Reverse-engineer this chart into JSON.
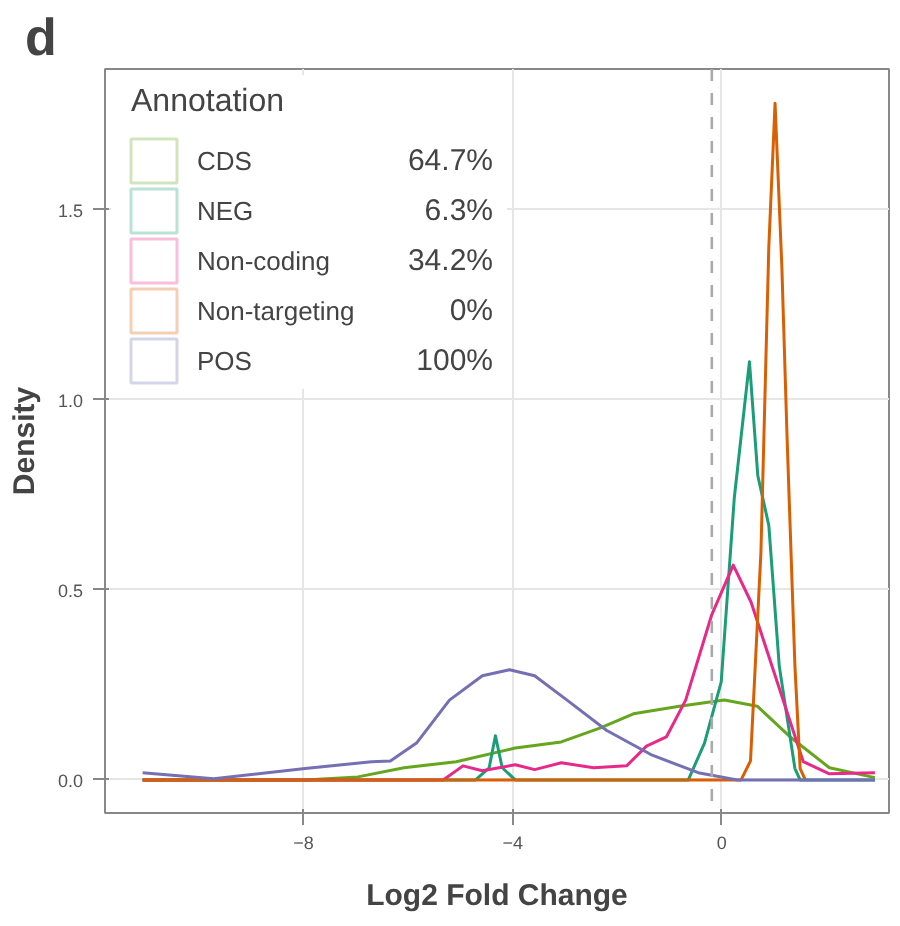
{
  "chart_data": {
    "type": "line",
    "title": "d",
    "xlabel": "Log2 Fold Change",
    "ylabel": "Density",
    "legend_title": "Annotation",
    "legend": "top left",
    "grid": true,
    "marker": "none",
    "line_style": "solid",
    "xlim": [
      -11.8,
      3.2
    ],
    "ylim": [
      -0.087,
      1.87
    ],
    "xticks": [
      -8,
      -4,
      0
    ],
    "yticks": [
      {
        "value": 0,
        "label": "0.0"
      },
      {
        "value": 0.5,
        "label": "0.5"
      },
      {
        "value": 1,
        "label": "1.0"
      },
      {
        "value": 1.5,
        "label": "1.5"
      }
    ],
    "annotations": [
      "64.7%",
      "6.3%",
      "34.2%",
      "0%",
      "100%"
    ],
    "ref_lines": [
      {
        "axis": "x",
        "value": -0.19,
        "color": "#aaaaaa",
        "line_style": "dashed"
      }
    ],
    "series": [
      {
        "name": "CDS",
        "color": "#66a61e",
        "x": [
          -11.08,
          -7.97,
          -6.96,
          -6.08,
          -5.08,
          -3.95,
          -3.07,
          -2.32,
          -1.69,
          -0.81,
          0.05,
          0.68,
          1.31,
          2.06,
          2.93
        ],
        "values": [
          0,
          0,
          0.008,
          0.032,
          0.048,
          0.084,
          0.1,
          0.137,
          0.174,
          0.194,
          0.21,
          0.194,
          0.113,
          0.032,
          0.006
        ]
      },
      {
        "name": "NEG",
        "color": "#1b9e77",
        "x": [
          -11.08,
          -4.71,
          -4.45,
          -4.33,
          -4.2,
          -3.95,
          -0.64,
          -0.33,
          -0.01,
          0.24,
          0.53,
          0.69,
          0.9,
          1.1,
          1.4,
          1.5,
          2.93
        ],
        "values": [
          0,
          0,
          0.032,
          0.116,
          0.032,
          0,
          0,
          0.097,
          0.258,
          0.742,
          1.1,
          0.8,
          0.67,
          0.3,
          0.03,
          0,
          0
        ]
      },
      {
        "name": "Non-coding",
        "color": "#e7298a",
        "x": [
          -11.08,
          -5.33,
          -4.95,
          -4.58,
          -3.95,
          -3.58,
          -3.07,
          -2.45,
          -1.82,
          -1.44,
          -1.06,
          -0.69,
          -0.19,
          0.22,
          0.56,
          1.06,
          1.56,
          2.06,
          2.93
        ],
        "values": [
          0,
          0,
          0.037,
          0.024,
          0.04,
          0.027,
          0.045,
          0.032,
          0.037,
          0.089,
          0.113,
          0.21,
          0.435,
          0.565,
          0.468,
          0.258,
          0.048,
          0.016,
          0.019
        ]
      },
      {
        "name": "Non-targeting",
        "color": "#d95f02",
        "x": [
          -11.08,
          0.37,
          0.55,
          0.75,
          0.9,
          1.02,
          1.15,
          1.25,
          1.4,
          1.5,
          1.6
        ],
        "values": [
          0,
          0,
          0.05,
          0.6,
          1.4,
          1.78,
          1.35,
          0.9,
          0.3,
          0.03,
          0
        ]
      },
      {
        "name": "POS",
        "color": "#7570b3",
        "x": [
          -11.08,
          -9.72,
          -7.97,
          -6.7,
          -6.34,
          -5.84,
          -5.21,
          -4.58,
          -4.06,
          -3.58,
          -2.96,
          -2.2,
          -1.33,
          -0.45,
          0.3,
          2.93
        ],
        "values": [
          0.019,
          0.003,
          0.03,
          0.048,
          0.05,
          0.097,
          0.21,
          0.274,
          0.29,
          0.274,
          0.21,
          0.13,
          0.065,
          0.019,
          0,
          0
        ]
      }
    ]
  }
}
